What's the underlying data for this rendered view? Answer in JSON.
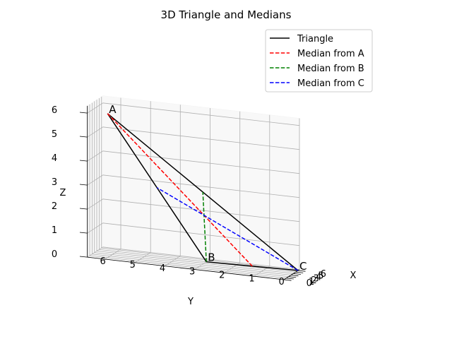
{
  "chart_data": {
    "type": "line3d",
    "title": "3D Triangle and Medians",
    "xlabel": "X",
    "ylabel": "Y",
    "zlabel": "Z",
    "x_ticks": [
      0,
      1,
      2,
      3,
      4,
      5,
      6
    ],
    "y_ticks": [
      0,
      1,
      2,
      3,
      4,
      5,
      6
    ],
    "z_ticks": [
      0,
      1,
      2,
      3,
      4,
      5,
      6
    ],
    "xlim": [
      0,
      6.6
    ],
    "ylim": [
      0,
      6.6
    ],
    "zlim": [
      0,
      6.3
    ],
    "grid": true,
    "legend": "top-right",
    "vertices": [
      {
        "label": "A",
        "x": 1,
        "y": 6,
        "z": 6
      },
      {
        "label": "B",
        "x": 5,
        "y": 3,
        "z": 0
      },
      {
        "label": "C",
        "x": 6,
        "y": 0,
        "z": 0
      }
    ],
    "series": [
      {
        "name": "Triangle",
        "color": "#000000",
        "style": "solid",
        "points": [
          [
            1,
            6,
            6
          ],
          [
            5,
            3,
            0
          ],
          [
            6,
            0,
            0
          ],
          [
            1,
            6,
            6
          ]
        ]
      },
      {
        "name": "Median from A",
        "color": "#ff0000",
        "style": "dashed",
        "points": [
          [
            1,
            6,
            6
          ],
          [
            5.5,
            1.5,
            0
          ]
        ]
      },
      {
        "name": "Median from B",
        "color": "#008000",
        "style": "dashed",
        "points": [
          [
            5,
            3,
            0
          ],
          [
            3.5,
            3,
            3
          ]
        ]
      },
      {
        "name": "Median from C",
        "color": "#0000ff",
        "style": "dashed",
        "points": [
          [
            6,
            0,
            0
          ],
          [
            3,
            4.5,
            3
          ]
        ]
      }
    ]
  }
}
